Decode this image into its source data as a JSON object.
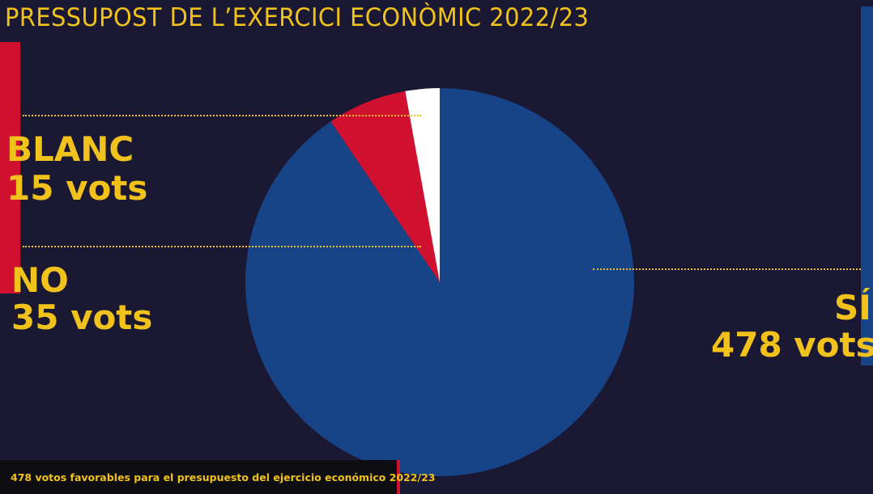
{
  "header": {
    "title": "PRESSUPOST DE L’EXERCICI ECONÒMIC 2022/23"
  },
  "labels": {
    "blanc": {
      "name": "BLANC",
      "votes": "15 vots"
    },
    "no": {
      "name": "NO",
      "votes": "35 vots"
    },
    "si": {
      "name": "SÍ",
      "votes": "478 vots"
    }
  },
  "caption": "478 votos favorables para el presupuesto del ejercicio económico 2022/23",
  "colors": {
    "background": "#1a1833",
    "accent_yellow": "#f1c21b",
    "si_blue": "#174387",
    "no_red": "#d0112f",
    "blanc_white": "#ffffff"
  },
  "chart_data": {
    "type": "pie",
    "title": "PRESSUPOST DE L’EXERCICI ECONÒMIC 2022/23",
    "slices": [
      {
        "label": "SÍ",
        "value": 478,
        "color": "#174387"
      },
      {
        "label": "NO",
        "value": 35,
        "color": "#d0112f"
      },
      {
        "label": "BLANC",
        "value": 15,
        "color": "#ffffff"
      }
    ],
    "start": "12 o'clock",
    "direction": "clockwise"
  }
}
